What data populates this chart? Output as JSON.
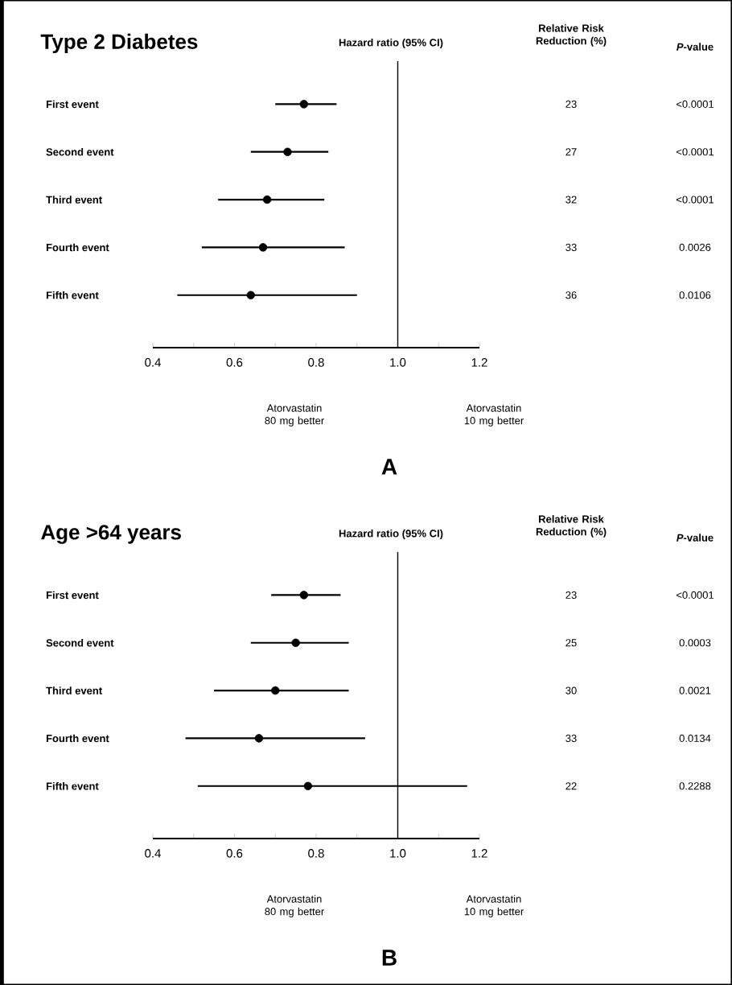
{
  "chart_data": [
    {
      "type": "scatter",
      "orientation": "horizontal",
      "title": "Type 2 Diabetes",
      "color": "#000000",
      "categories": [
        "First event",
        "Second event",
        "Third event",
        "Fourth event",
        "Fifth event"
      ],
      "values": [
        0.77,
        0.73,
        0.68,
        0.67,
        0.64
      ],
      "errors": [
        [
          0.7,
          0.85
        ],
        [
          0.64,
          0.83
        ],
        [
          0.56,
          0.82
        ],
        [
          0.52,
          0.87
        ],
        [
          0.46,
          0.9
        ]
      ],
      "xlim": [
        0.4,
        1.2
      ],
      "xticks": [
        0.4,
        {
          "value": 0.5,
          "label": null
        },
        0.6,
        {
          "value": 0.7,
          "label": null
        },
        0.8,
        {
          "value": 0.9,
          "label": null
        },
        {
          "value": 1.0,
          "label": "1.0"
        },
        {
          "value": 1.1,
          "label": null
        },
        1.2
      ],
      "ref_lines": [
        {
          "axis": "x",
          "value": 1.0
        }
      ],
      "annotations": [
        "Hazard ratio (95% CI)",
        "Relative Risk Reduction (%)",
        "*P*-value",
        "23",
        "<0.0001",
        "27",
        "<0.0001",
        "32",
        "<0.0001",
        "33",
        "0.0026",
        "36",
        "0.0106",
        "Atorvastatin 80 mg better",
        "Atorvastatin 10 mg better",
        "A"
      ]
    },
    {
      "type": "scatter",
      "orientation": "horizontal",
      "title": "Age >64 years",
      "color": "#000000",
      "categories": [
        "First event",
        "Second event",
        "Third event",
        "Fourth event",
        "Fifth event"
      ],
      "values": [
        0.77,
        0.75,
        0.7,
        0.66,
        0.78
      ],
      "errors": [
        [
          0.69,
          0.86
        ],
        [
          0.64,
          0.88
        ],
        [
          0.55,
          0.88
        ],
        [
          0.48,
          0.92
        ],
        [
          0.51,
          1.17
        ]
      ],
      "xlim": [
        0.4,
        1.2
      ],
      "xticks": [
        0.4,
        {
          "value": 0.5,
          "label": null
        },
        0.6,
        {
          "value": 0.7,
          "label": null
        },
        0.8,
        {
          "value": 0.9,
          "label": null
        },
        {
          "value": 1.0,
          "label": "1.0"
        },
        {
          "value": 1.1,
          "label": null
        },
        1.2
      ],
      "ref_lines": [
        {
          "axis": "x",
          "value": 1.0
        }
      ],
      "annotations": [
        "Hazard ratio (95% CI)",
        "Relative Risk Reduction (%)",
        "*P*-value",
        "23",
        "<0.0001",
        "25",
        "0.0003",
        "30",
        "0.0021",
        "33",
        "0.0134",
        "22",
        "0.2288",
        "Atorvastatin 80 mg better",
        "Atorvastatin 10 mg better",
        "B"
      ]
    }
  ]
}
